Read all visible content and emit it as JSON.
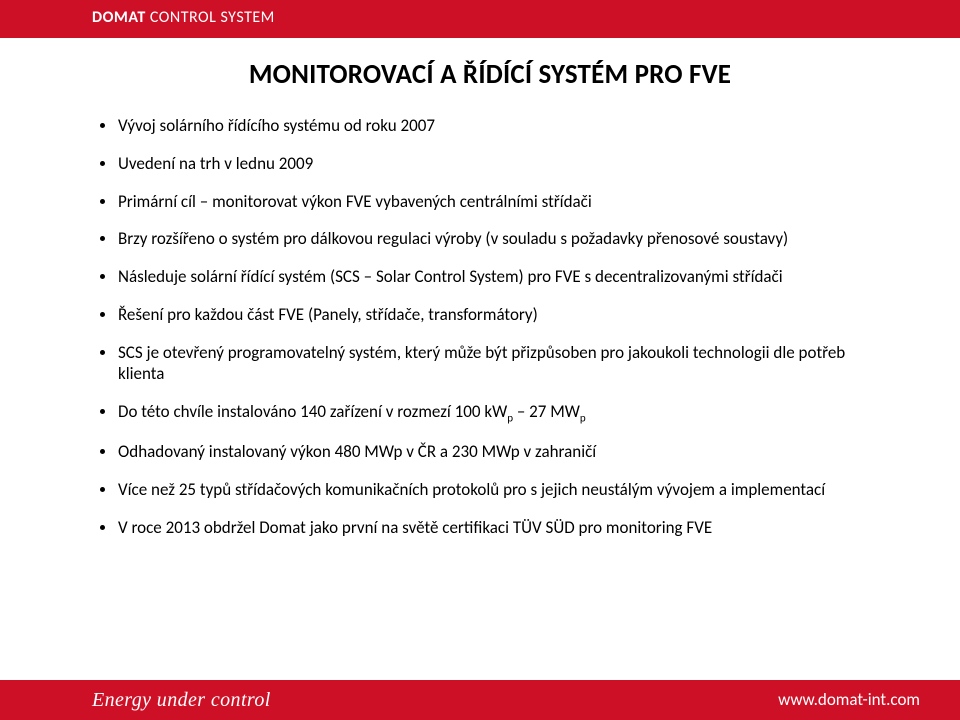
{
  "header": {
    "brand_bold": "DOMAT",
    "brand_light": "CONTROL SYSTEM"
  },
  "title": "MONITOROVACÍ A ŘÍDÍCÍ SYSTÉM PRO FVE",
  "bullets": [
    "Vývoj solárního řídícího systému od roku 2007",
    "Uvedení na trh v lednu 2009",
    "Primární cíl – monitorovat výkon FVE vybavených centrálními střídači",
    "Brzy rozšířeno o systém pro dálkovou regulaci výroby (v souladu s požadavky přenosové soustavy)",
    "Následuje solární řídící systém (SCS – Solar Control System) pro FVE s decentralizovanými střídači",
    "Řešení pro každou část FVE (Panely, střídače, transformátory)",
    "SCS je otevřený programovatelný systém, který může být přizpůsoben pro jakoukoli technologii dle potřeb klienta",
    "Do této chvíle instalováno 140 zařízení v rozmezí 100 kWp – 27 MWp",
    "Odhadovaný instalovaný výkon 480 MWp v ČR a 230 MWp v zahraničí",
    "Více než 25 typů střídačových komunikačních protokolů pro s jejich neustálým vývojem a implementací",
    "V roce 2013 obdržel Domat jako první na světě certifikaci TÜV SÜD pro monitoring FVE"
  ],
  "footer": {
    "tagline": "Energy under control",
    "url": "www.domat-int.com"
  },
  "colors": {
    "accent": "#ce1027",
    "text": "#000000",
    "background": "#ffffff"
  }
}
